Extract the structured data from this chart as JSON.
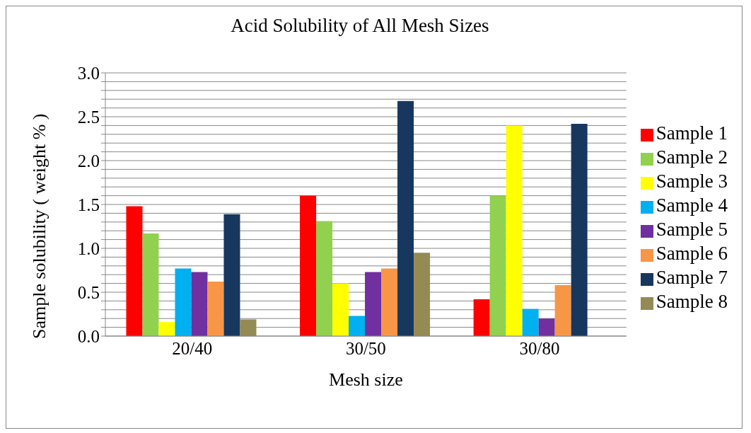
{
  "chart_data": {
    "type": "bar",
    "title": "Acid Solubility of All Mesh Sizes",
    "xlabel": "Mesh size",
    "ylabel": "Sample solubility ( weight % )",
    "categories": [
      "20/40",
      "30/50",
      "30/80"
    ],
    "series": [
      {
        "name": "Sample 1",
        "color": "#ff0000",
        "values": [
          1.48,
          1.6,
          0.42
        ]
      },
      {
        "name": "Sample 2",
        "color": "#92d050",
        "values": [
          1.17,
          1.31,
          1.6
        ]
      },
      {
        "name": "Sample 3",
        "color": "#ffff00",
        "values": [
          0.16,
          0.6,
          2.4
        ]
      },
      {
        "name": "Sample 4",
        "color": "#00b0f0",
        "values": [
          0.77,
          0.23,
          0.31
        ]
      },
      {
        "name": "Sample 5",
        "color": "#7030a0",
        "values": [
          0.73,
          0.73,
          0.2
        ]
      },
      {
        "name": "Sample 6",
        "color": "#f79646",
        "values": [
          0.62,
          0.77,
          0.58
        ]
      },
      {
        "name": "Sample 7",
        "color": "#17375e",
        "values": [
          1.39,
          2.68,
          2.42
        ]
      },
      {
        "name": "Sample 8",
        "color": "#948a54",
        "values": [
          0.19,
          0.95,
          0
        ]
      }
    ],
    "ylim": [
      0,
      3
    ],
    "yticks": [
      {
        "value": 0,
        "label": "0.0"
      },
      {
        "value": 0.1,
        "label": null
      },
      {
        "value": 0.2,
        "label": null
      },
      {
        "value": 0.3,
        "label": null
      },
      {
        "value": 0.4,
        "label": null
      },
      {
        "value": 0.5,
        "label": "0.5"
      },
      {
        "value": 0.6,
        "label": null
      },
      {
        "value": 0.7,
        "label": null
      },
      {
        "value": 0.8,
        "label": null
      },
      {
        "value": 0.9,
        "label": null
      },
      {
        "value": 1,
        "label": "1.0"
      },
      {
        "value": 1.1,
        "label": null
      },
      {
        "value": 1.2,
        "label": null
      },
      {
        "value": 1.3,
        "label": null
      },
      {
        "value": 1.4,
        "label": null
      },
      {
        "value": 1.5,
        "label": "1.5"
      },
      {
        "value": 1.6,
        "label": null
      },
      {
        "value": 1.7,
        "label": null
      },
      {
        "value": 1.8,
        "label": null
      },
      {
        "value": 1.9,
        "label": null
      },
      {
        "value": 2,
        "label": "2.0"
      },
      {
        "value": 2.1,
        "label": null
      },
      {
        "value": 2.2,
        "label": null
      },
      {
        "value": 2.3,
        "label": null
      },
      {
        "value": 2.4,
        "label": null
      },
      {
        "value": 2.5,
        "label": "2.5"
      },
      {
        "value": 2.6,
        "label": null
      },
      {
        "value": 2.7,
        "label": null
      },
      {
        "value": 2.8,
        "label": null
      },
      {
        "value": 2.9,
        "label": null
      },
      {
        "value": 3,
        "label": "3.0"
      }
    ],
    "grid": "y",
    "legend": "right"
  }
}
